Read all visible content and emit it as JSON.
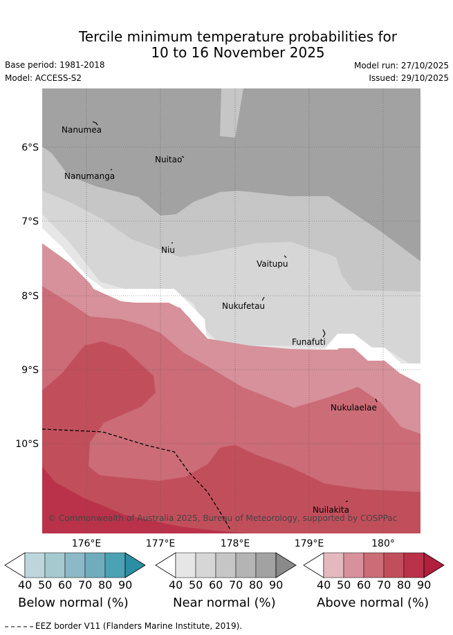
{
  "header": {
    "title_line1": "Tercile minimum temperature probabilities for",
    "title_line2": "10 to 16 November 2025",
    "base_period": "Base period: 1981-2018",
    "model": "Model: ACCESS-S2",
    "model_run": "Model run: 27/10/2025",
    "issued": "Issued: 29/10/2025"
  },
  "map": {
    "lat_labels": [
      "6°S",
      "7°S",
      "8°S",
      "9°S",
      "10°S"
    ],
    "lon_labels": [
      "176°E",
      "177°E",
      "178°E",
      "179°E",
      "180°"
    ],
    "places": [
      "Nanumea",
      "Nuitao",
      "Nanumanga",
      "Niu",
      "Vaitupu",
      "Nukufetau",
      "Funafuti",
      "Nukulaelae",
      "Nuilakita"
    ],
    "copyright": "© Commonwealth of Australia 2025, Bureau of Meteorology, supported by COSPPac"
  },
  "colorbars": {
    "ticks": [
      "40",
      "50",
      "60",
      "70",
      "80",
      "90"
    ],
    "below": {
      "label": "Below normal (%)",
      "colors": [
        "#ffffff",
        "#bcd6dc",
        "#a5c9ce",
        "#8bb9c5",
        "#6fadbd",
        "#4aa2b4",
        "#2c8ea4"
      ]
    },
    "near": {
      "label": "Near normal (%)",
      "colors": [
        "#ffffff",
        "#e6e6e6",
        "#d6d6d6",
        "#c6c6c6",
        "#b4b4b4",
        "#a2a2a2",
        "#8a8a8a"
      ]
    },
    "above": {
      "label": "Above normal (%)",
      "colors": [
        "#ffffff",
        "#e3b9bf",
        "#d6919a",
        "#cb6c77",
        "#c14f5b",
        "#b9324a",
        "#b21f3c"
      ]
    }
  },
  "legend": {
    "eez_note": "EEZ border V11 (Flanders Marine Institute, 2019)."
  }
}
